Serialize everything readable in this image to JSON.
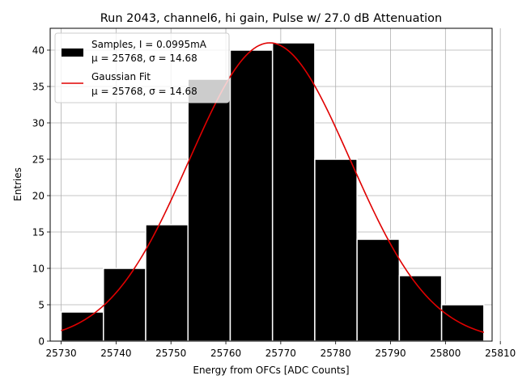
{
  "chart_data": {
    "type": "bar",
    "title": "Run 2043, channel6, hi gain, Pulse w/ 27.0 dB Attenuation",
    "xlabel": "Energy from OFCs [ADC Counts]",
    "ylabel": "Entries",
    "xlim": [
      25728,
      25808.5
    ],
    "ylim": [
      0,
      43
    ],
    "xticks": [
      25730,
      25740,
      25750,
      25760,
      25770,
      25780,
      25790,
      25800,
      25810
    ],
    "yticks": [
      0,
      5,
      10,
      15,
      20,
      25,
      30,
      35,
      40
    ],
    "grid": true,
    "legend_position": "top-left",
    "histogram": {
      "name": "Samples, I = 0.0995mA",
      "stats": "μ = 25768, σ = 14.68",
      "color": "#000000",
      "edgecolor": "#ffffff",
      "bin_edges": [
        25730.0,
        25737.7,
        25745.4,
        25753.1,
        25760.8,
        25768.5,
        25776.2,
        25783.9,
        25791.6,
        25799.3,
        25807.0
      ],
      "counts": [
        4,
        10,
        16,
        36,
        40,
        41,
        25,
        14,
        9,
        5
      ]
    },
    "fit": {
      "name": "Gaussian Fit",
      "stats": "μ = 25768, σ = 14.68",
      "color": "#e00000",
      "mu": 25768,
      "sigma": 14.68,
      "amplitude": 41,
      "x_range": [
        25730,
        25807
      ]
    }
  }
}
